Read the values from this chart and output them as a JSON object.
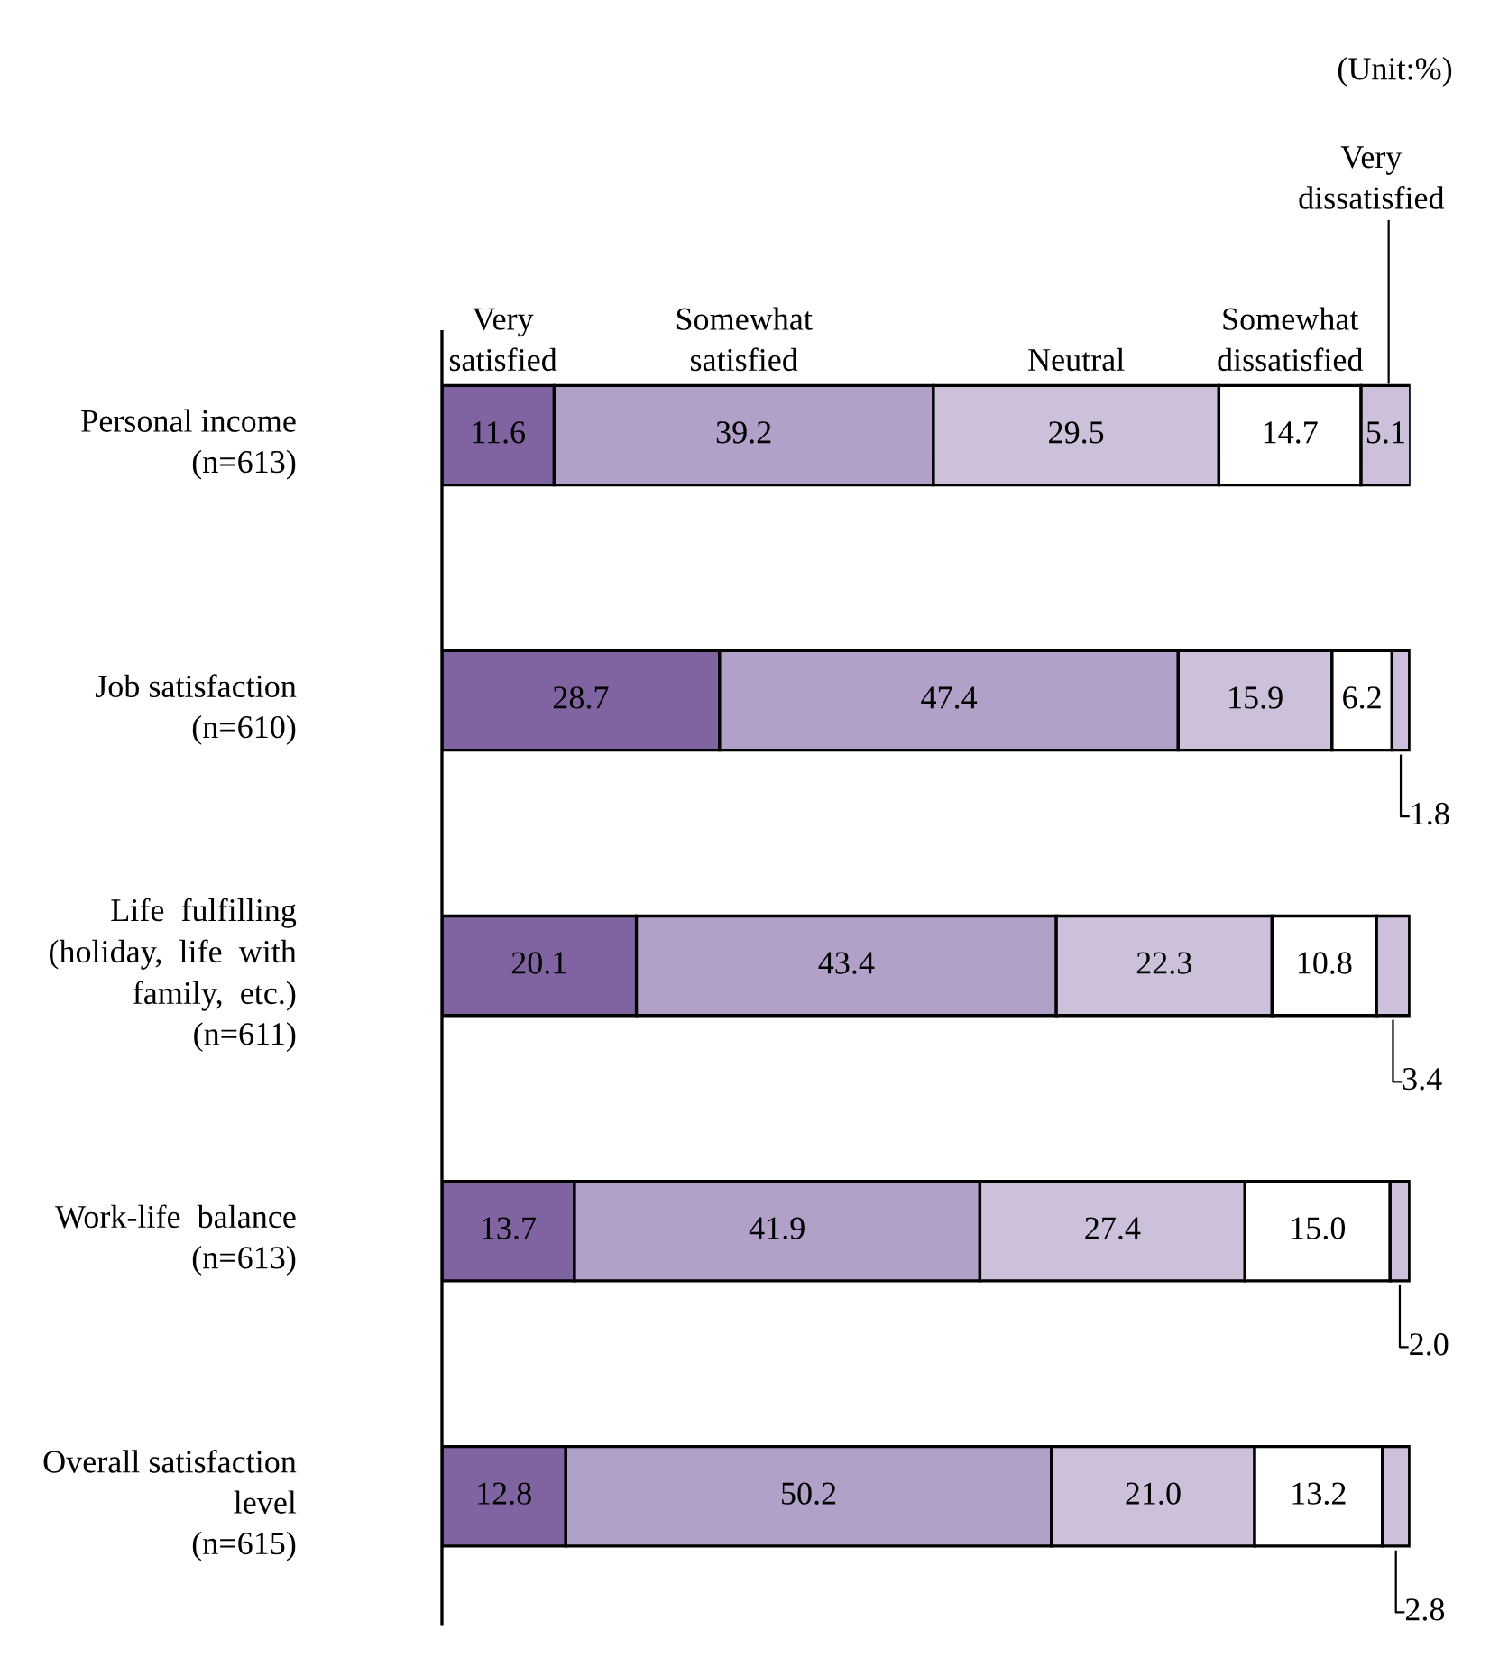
{
  "chart_data": {
    "type": "bar",
    "orientation": "horizontal",
    "stacked": true,
    "categories": [
      "Personal income\n(n=613)",
      "Job satisfaction\n(n=610)",
      "Life  fulfilling\n(holiday,  life  with\nfamily,  etc.)\n(n=611)",
      "Work-life  balance\n(n=613)",
      "Overall satisfaction\nlevel\n(n=615)"
    ],
    "series": [
      {
        "name": "Very\nsatisfied",
        "color": "#8064a2",
        "values": [
          11.6,
          28.7,
          20.1,
          13.7,
          12.8
        ],
        "value_labels": [
          "11.6",
          "28.7",
          "20.1",
          "13.7",
          "12.8"
        ]
      },
      {
        "name": "Somewhat\nsatisfied",
        "color": "#b1a0c7",
        "values": [
          39.2,
          47.4,
          43.4,
          41.9,
          50.2
        ],
        "value_labels": [
          "39.2",
          "47.4",
          "43.4",
          "41.9",
          "50.2"
        ]
      },
      {
        "name": "Neutral",
        "color": "#ccc0da",
        "values": [
          29.5,
          15.9,
          22.3,
          27.4,
          21.0
        ],
        "value_labels": [
          "29.5",
          "15.9",
          "22.3",
          "27.4",
          "21.0"
        ]
      },
      {
        "name": "Somewhat\ndissatisfied",
        "color": "#ffffff",
        "values": [
          14.7,
          6.2,
          10.8,
          15.0,
          13.2
        ],
        "value_labels": [
          "14.7",
          "6.2",
          "10.8",
          "15.0",
          "13.2"
        ]
      },
      {
        "name": "Very\ndissatisfied",
        "color": "#ccc0da",
        "values": [
          5.1,
          1.8,
          3.4,
          2.0,
          2.8
        ],
        "value_labels": [
          "5.1",
          "1.8",
          "3.4",
          "2.0",
          "2.8"
        ]
      }
    ],
    "xlim": [
      0,
      100.1
    ],
    "tick_labels": "y",
    "grid": false,
    "annotations": [
      "(Unit:%)"
    ]
  }
}
